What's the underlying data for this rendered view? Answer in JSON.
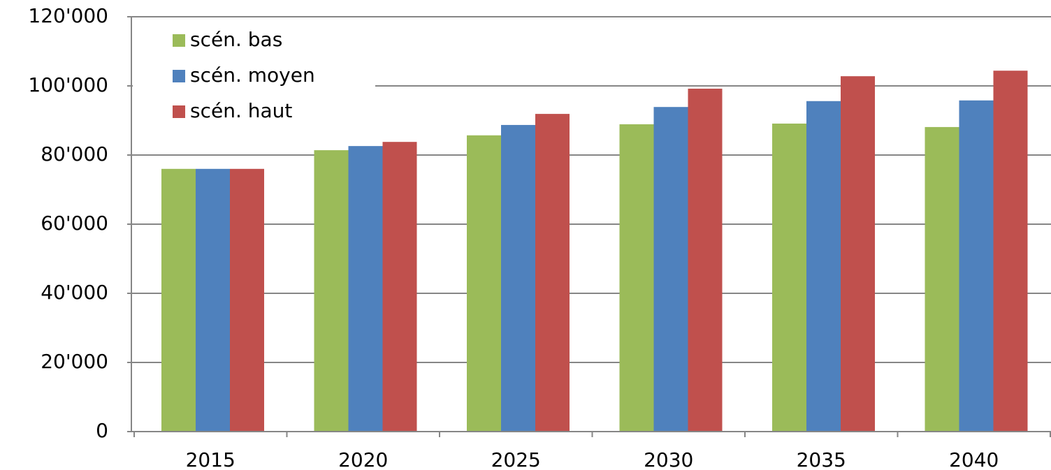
{
  "chart_data": {
    "type": "bar",
    "categories": [
      "2015",
      "2020",
      "2025",
      "2030",
      "2035",
      "2040"
    ],
    "series": [
      {
        "name": "scén. bas",
        "color": "#9bbb59",
        "values": [
          76000,
          81400,
          85700,
          88900,
          89100,
          88100
        ]
      },
      {
        "name": "scén. moyen",
        "color": "#4f81bd",
        "values": [
          76000,
          82600,
          88700,
          93900,
          95600,
          95800
        ]
      },
      {
        "name": "scén. haut",
        "color": "#c0504d",
        "values": [
          76000,
          83800,
          91900,
          99200,
          102800,
          104400
        ]
      }
    ],
    "ylim": [
      0,
      120000
    ],
    "yticks": [
      0,
      {
        "value": 20000,
        "label": "20'000"
      },
      {
        "value": 40000,
        "label": "40'000"
      },
      {
        "value": 60000,
        "label": "60'000"
      },
      {
        "value": 80000,
        "label": "80'000"
      },
      {
        "value": 100000,
        "label": "100'000"
      },
      {
        "value": 120000,
        "label": "120'000"
      }
    ],
    "grid": true,
    "legend": "top-left"
  }
}
